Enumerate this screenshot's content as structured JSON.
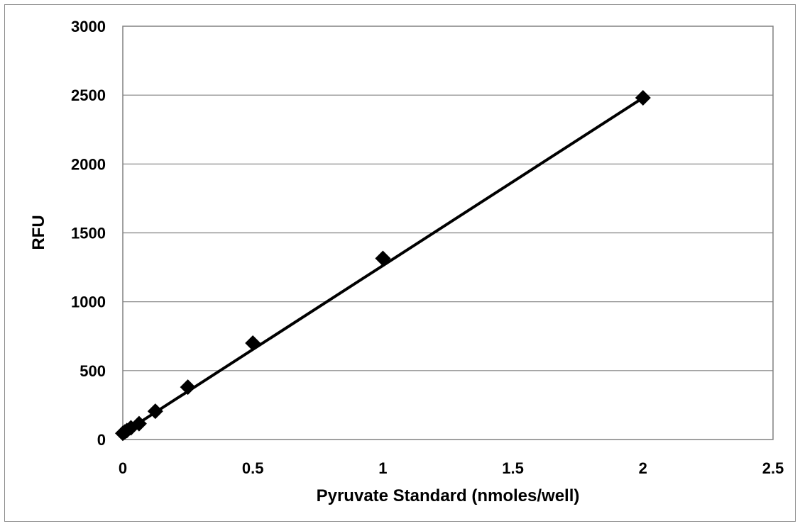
{
  "chart_data": {
    "type": "scatter",
    "title": "",
    "xlabel": "Pyruvate Standard (nmoles/well)",
    "ylabel": "RFU",
    "xlim": [
      0,
      2.5
    ],
    "ylim": [
      0,
      3000
    ],
    "xticks": [
      0,
      0.5,
      1,
      1.5,
      2,
      2.5
    ],
    "yticks": [
      0,
      500,
      1000,
      1500,
      2000,
      2500,
      3000
    ],
    "xtick_labels": [
      "0",
      "0.5",
      "1",
      "1.5",
      "2",
      "2.5"
    ],
    "ytick_labels": [
      "0",
      "500",
      "1000",
      "1500",
      "2000",
      "2500",
      "3000"
    ],
    "grid": "horizontal",
    "legend": "none",
    "marker": "diamond",
    "color": "#000000",
    "series": [
      {
        "x": [
          0,
          0.0078,
          0.0156,
          0.03125,
          0.0625,
          0.125,
          0.25,
          0.5,
          1,
          2
        ],
        "y": [
          45,
          55,
          65,
          85,
          115,
          205,
          380,
          700,
          1315,
          2480
        ]
      }
    ],
    "trendline": {
      "type": "linear",
      "x": [
        0,
        2
      ],
      "y": [
        45,
        2480
      ]
    }
  }
}
